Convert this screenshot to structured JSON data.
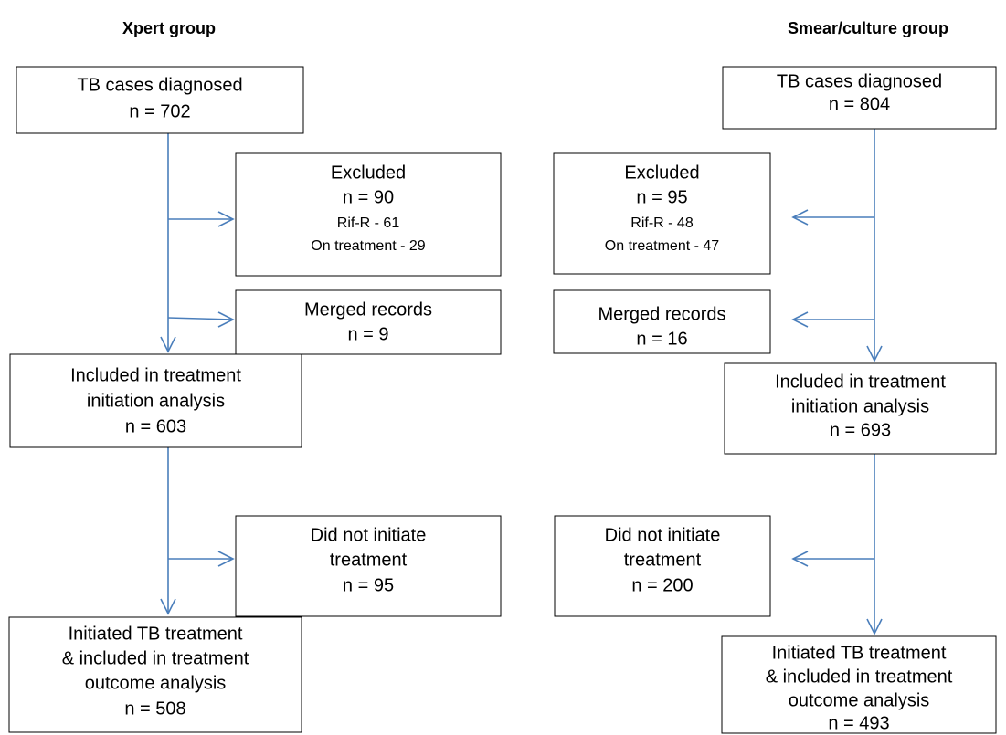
{
  "groups": [
    {
      "title": "Xpert group",
      "boxes": [
        {
          "lines": [
            "TB cases diagnosed",
            "n = 702"
          ]
        },
        {
          "lines": [
            "Excluded",
            "n = 90",
            "Rif-R - 61",
            "On treatment - 29"
          ]
        },
        {
          "lines": [
            "Merged records",
            "n = 9"
          ]
        },
        {
          "lines": [
            "Included in treatment",
            "initiation analysis",
            "n = 603"
          ]
        },
        {
          "lines": [
            "Did not initiate",
            "treatment",
            "n = 95"
          ]
        },
        {
          "lines": [
            "Initiated TB treatment",
            "& included in treatment",
            "outcome analysis",
            "n = 508"
          ]
        }
      ]
    },
    {
      "title": "Smear/culture group",
      "boxes": [
        {
          "lines": [
            "TB cases diagnosed",
            "n = 804"
          ]
        },
        {
          "lines": [
            "Excluded",
            "n = 95",
            "Rif-R - 48",
            "On treatment - 47"
          ]
        },
        {
          "lines": [
            "Merged records",
            "n = 16"
          ]
        },
        {
          "lines": [
            "Included in treatment",
            "initiation analysis",
            "n = 693"
          ]
        },
        {
          "lines": [
            "Did not initiate",
            "treatment",
            "n = 200"
          ]
        },
        {
          "lines": [
            "Initiated TB treatment",
            "& included in treatment",
            "outcome analysis",
            "n = 493"
          ]
        }
      ]
    }
  ]
}
